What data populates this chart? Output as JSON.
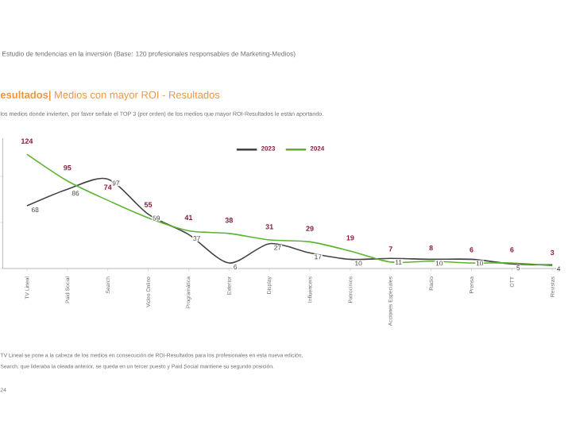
{
  "chart_data": {
    "type": "line",
    "title": "**esultados|** Medios con mayor ROI - Resultados",
    "subtitle": "los medios donde invierten, por favor señale el TOP 3 (por orden) de los medios que mayor ROI-Resultados le están aportando.",
    "annotations": [
      "Estudio de tendencias en la inversión (Base: 120 profesionales responsables de Marketing-Medios)",
      "TV Lineal se pone a la cabeza de los medios en consecución de ROI-Resultados para los profesionales en esta nueva edición,",
      "Search, que lideraba la oleada anterior, se queda en un tercer puesto y Paid Social mantiene su segundo posición.",
      "24"
    ],
    "categories": [
      "TV Lineal",
      "Paid Social",
      "Search",
      "Video Online",
      "Programática",
      "Exterior",
      "Display",
      "Influencers",
      "Patrocinios",
      "Acciones Especiales",
      "Radio",
      "Prensa",
      "OTT",
      "Revistas"
    ],
    "series": [
      {
        "name": "2023",
        "color": "#444444",
        "values": [
          68,
          86,
          97,
          59,
          37,
          6,
          27,
          17,
          10,
          11,
          10,
          10,
          5,
          4
        ]
      },
      {
        "name": "2024",
        "color": "#5cb531",
        "values": [
          124,
          95,
          74,
          55,
          41,
          38,
          31,
          29,
          19,
          7,
          8,
          6,
          6,
          3
        ]
      }
    ],
    "data_labels": true,
    "legend": "top",
    "tick_labels": "x",
    "grid": false
  }
}
